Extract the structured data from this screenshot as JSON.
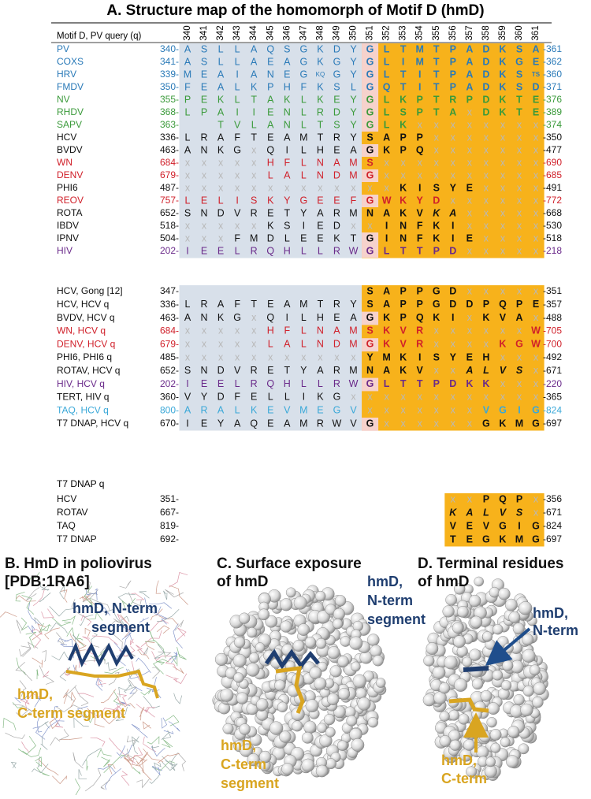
{
  "panel_a": {
    "title": "A. Structure map of the homomorph of Motif D (hmD)",
    "query_label": "Motif D, PV query (q)",
    "positions": [
      340,
      341,
      342,
      343,
      344,
      345,
      346,
      347,
      348,
      349,
      350,
      351,
      352,
      353,
      354,
      355,
      356,
      357,
      358,
      359,
      360,
      361
    ],
    "groups": [
      {
        "rows": [
          {
            "name": "PV",
            "color": "#2a7ab8",
            "start": "340-",
            "residues": [
              "A",
              "S",
              "L",
              "L",
              "A",
              "Q",
              "S",
              "G",
              "K",
              "D",
              "Y",
              "G",
              "L",
              "T",
              "M",
              "T",
              "P",
              "A",
              "D",
              "K",
              "S",
              "A"
            ],
            "end": "-361"
          },
          {
            "name": "COXS",
            "color": "#2a7ab8",
            "start": "341-",
            "residues": [
              "A",
              "S",
              "L",
              "L",
              "A",
              "E",
              "A",
              "G",
              "K",
              "G",
              "Y",
              "G",
              "L",
              "I",
              "M",
              "T",
              "P",
              "A",
              "D",
              "K",
              "G",
              "E"
            ],
            "end": "-362"
          },
          {
            "name": "HRV",
            "color": "#2a7ab8",
            "start": "339-",
            "residues": [
              "M",
              "E",
              "A",
              "I",
              "A",
              "N",
              "E",
              "G",
              "KQ",
              "G",
              "Y",
              "G",
              "L",
              "T",
              "I",
              "T",
              "P",
              "A",
              "D",
              "K",
              "S",
              "TS"
            ],
            "end": "-360"
          },
          {
            "name": "FMDV",
            "color": "#2a7ab8",
            "start": "350-",
            "residues": [
              "F",
              "E",
              "A",
              "L",
              "K",
              "P",
              "H",
              "F",
              "K",
              "S",
              "L",
              "G",
              "Q",
              "T",
              "I",
              "T",
              "P",
              "A",
              "D",
              "K",
              "S",
              "D"
            ],
            "end": "-371"
          },
          {
            "name": "NV",
            "color": "#3a9a3a",
            "start": "355-",
            "residues": [
              "P",
              "E",
              "K",
              "L",
              "T",
              "A",
              "K",
              "L",
              "K",
              "E",
              "Y",
              "G",
              "L",
              "K",
              "P",
              "T",
              "R",
              "P",
              "D",
              "K",
              "T",
              "E"
            ],
            "end": "-376"
          },
          {
            "name": "RHDV",
            "color": "#3a9a3a",
            "start": "368-",
            "residues": [
              "L",
              "P",
              "A",
              "I",
              "I",
              "E",
              "N",
              "L",
              "R",
              "D",
              "Y",
              "G",
              "L",
              "S",
              "P",
              "T",
              "A",
              "x",
              "D",
              "K",
              "T",
              "E"
            ],
            "end": "-389"
          },
          {
            "name": "SAPV",
            "color": "#3a9a3a",
            "start": "363-",
            "residues": [
              null,
              null,
              "T",
              "V",
              "L",
              "A",
              "N",
              "L",
              "T",
              "S",
              "Y",
              "G",
              "L",
              "K",
              "x",
              "x",
              "x",
              "x",
              "x",
              "x",
              "x",
              "x"
            ],
            "end": "-374"
          },
          {
            "name": "HCV",
            "color": "#111111",
            "start": "336-",
            "residues": [
              "L",
              "R",
              "A",
              "F",
              "T",
              "E",
              "A",
              "M",
              "T",
              "R",
              "Y",
              "S",
              "A",
              "P",
              "P",
              "x",
              "x",
              "x",
              "x",
              "x",
              "x",
              "x"
            ],
            "end": "-350"
          },
          {
            "name": "BVDV",
            "color": "#111111",
            "start": "463-",
            "residues": [
              "A",
              "N",
              "K",
              "G",
              "x",
              "Q",
              "I",
              "L",
              "H",
              "E",
              "A",
              "G",
              "K",
              "P",
              "Q",
              "x",
              "x",
              "x",
              "x",
              "x",
              "x",
              "x"
            ],
            "end": "-477"
          },
          {
            "name": "WN",
            "color": "#d0202a",
            "start": "684-",
            "residues": [
              "x",
              "x",
              "x",
              "x",
              "x",
              "H",
              "F",
              "L",
              "N",
              "A",
              "M",
              "S",
              "x",
              "x",
              "x",
              "x",
              "x",
              "x",
              "x",
              "x",
              "x",
              "x"
            ],
            "end": "-690"
          },
          {
            "name": "DENV",
            "color": "#d0202a",
            "start": "679-",
            "residues": [
              "x",
              "x",
              "x",
              "x",
              "x",
              "L",
              "A",
              "L",
              "N",
              "D",
              "M",
              "G",
              "x",
              "x",
              "x",
              "x",
              "x",
              "x",
              "x",
              "x",
              "x",
              "x"
            ],
            "end": "-685"
          },
          {
            "name": "PHI6",
            "color": "#111111",
            "start": "487-",
            "residues": [
              "x",
              "x",
              "x",
              "x",
              "x",
              "x",
              "x",
              "x",
              "x",
              "x",
              "x",
              "x",
              "x",
              "K",
              "I",
              "S",
              "Y",
              "E",
              "x",
              "x",
              "x",
              "x"
            ],
            "end": "-491"
          },
          {
            "name": "REOV",
            "color": "#d0202a",
            "start": "757-",
            "residues": [
              "L",
              "E",
              "L",
              "I",
              "S",
              "K",
              "Y",
              "G",
              "E",
              "E",
              "F",
              "G",
              "W",
              "K",
              "Y",
              "D",
              "x",
              "x",
              "x",
              "x",
              "x",
              "x"
            ],
            "end": "-772"
          },
          {
            "name": "ROTA",
            "color": "#111111",
            "start": "652-",
            "residues": [
              "S",
              "N",
              "D",
              "V",
              "R",
              "E",
              "T",
              "Y",
              "A",
              "R",
              "M",
              "N",
              "A",
              "K",
              "V",
              "K",
              "A",
              "x",
              "x",
              "x",
              "x",
              "x"
            ],
            "end": "-668"
          },
          {
            "name": "IBDV",
            "color": "#111111",
            "start": "518-",
            "residues": [
              "x",
              "x",
              "x",
              "x",
              "x",
              "K",
              "S",
              "I",
              "E",
              "D",
              "x",
              "x",
              "I",
              "N",
              "F",
              "K",
              "I",
              "x",
              "x",
              "x",
              "x",
              "x"
            ],
            "end": "-530"
          },
          {
            "name": "IPNV",
            "color": "#111111",
            "start": "504-",
            "residues": [
              "x",
              "x",
              "x",
              "F",
              "M",
              "D",
              "L",
              "E",
              "E",
              "K",
              "T",
              "G",
              "I",
              "N",
              "F",
              "K",
              "I",
              "E",
              "x",
              "x",
              "x",
              "x"
            ],
            "end": "-518"
          },
          {
            "name": "HIV",
            "color": "#6a2a8a",
            "start": "202-",
            "residues": [
              "I",
              "E",
              "E",
              "L",
              "R",
              "Q",
              "H",
              "L",
              "L",
              "R",
              "W",
              "G",
              "L",
              "T",
              "T",
              "P",
              "D",
              "x",
              "x",
              "x",
              "x",
              "x"
            ],
            "end": "-218"
          }
        ]
      },
      {
        "rows": [
          {
            "name": "HCV, Gong [12]",
            "color": "#111111",
            "start": "347-",
            "residues": [
              null,
              null,
              null,
              null,
              null,
              null,
              null,
              null,
              null,
              null,
              null,
              "S",
              "A",
              "P",
              "P",
              "G",
              "D",
              "x",
              "x",
              "x",
              "x",
              "x"
            ],
            "end": "-351"
          },
          {
            "name": "HCV, HCV q",
            "color": "#111111",
            "start": "336-",
            "residues": [
              "L",
              "R",
              "A",
              "F",
              "T",
              "E",
              "A",
              "M",
              "T",
              "R",
              "Y",
              "S",
              "A",
              "P",
              "P",
              "G",
              "D",
              "D",
              "P",
              "Q",
              "P",
              "E"
            ],
            "end": "-357"
          },
          {
            "name": "BVDV, HCV q",
            "color": "#111111",
            "start": "463-",
            "residues": [
              "A",
              "N",
              "K",
              "G",
              "x",
              "Q",
              "I",
              "L",
              "H",
              "E",
              "A",
              "G",
              "K",
              "P",
              "Q",
              "K",
              "I",
              "x",
              "K",
              "V",
              "A",
              "x"
            ],
            "end": "-488"
          },
          {
            "name": "WN, HCV q",
            "color": "#d0202a",
            "start": "684-",
            "residues": [
              "x",
              "x",
              "x",
              "x",
              "x",
              "H",
              "F",
              "L",
              "N",
              "A",
              "M",
              "S",
              "K",
              "V",
              "R",
              "x",
              "x",
              "x",
              "x",
              "x",
              "x",
              "W"
            ],
            "end": "-705"
          },
          {
            "name": "DENV, HCV q",
            "color": "#d0202a",
            "start": "679-",
            "residues": [
              "x",
              "x",
              "x",
              "x",
              "x",
              "L",
              "A",
              "L",
              "N",
              "D",
              "M",
              "G",
              "K",
              "V",
              "R",
              "x",
              "x",
              "x",
              "x",
              "K",
              "G",
              "W"
            ],
            "end": "-700"
          },
          {
            "name": "PHI6, PHI6 q",
            "color": "#111111",
            "start": "485-",
            "residues": [
              "x",
              "x",
              "x",
              "x",
              "x",
              "x",
              "x",
              "x",
              "x",
              "x",
              "x",
              "Y",
              "M",
              "K",
              "I",
              "S",
              "Y",
              "E",
              "H",
              "x",
              "x",
              "x"
            ],
            "end": "-492"
          },
          {
            "name": "ROTAV, HCV q",
            "color": "#111111",
            "start": "652-",
            "residues": [
              "S",
              "N",
              "D",
              "V",
              "R",
              "E",
              "T",
              "Y",
              "A",
              "R",
              "M",
              "N",
              "A",
              "K",
              "V",
              "x",
              "x",
              "A",
              "L",
              "V",
              "S",
              "x"
            ],
            "end": "-671"
          },
          {
            "name": "HIV, HCV q",
            "color": "#6a2a8a",
            "start": "202-",
            "residues": [
              "I",
              "E",
              "E",
              "L",
              "R",
              "Q",
              "H",
              "L",
              "L",
              "R",
              "W",
              "G",
              "L",
              "T",
              "T",
              "P",
              "D",
              "K",
              "K",
              "x",
              "x",
              "x"
            ],
            "end": "-220"
          },
          {
            "name": "TERT, HIV q",
            "color": "#111111",
            "start": "360-",
            "residues": [
              "V",
              "Y",
              "D",
              "F",
              "E",
              "L",
              "L",
              "I",
              "K",
              "G",
              "x",
              "x",
              "x",
              "x",
              "x",
              "x",
              "x",
              "x",
              "x",
              "x",
              "x",
              "x"
            ],
            "end": "-365"
          },
          {
            "name": "TAQ, HCV q",
            "color": "#3aa8d8",
            "start": "800-",
            "residues": [
              "A",
              "R",
              "A",
              "L",
              "K",
              "E",
              "V",
              "M",
              "E",
              "G",
              "V",
              "x",
              "x",
              "x",
              "x",
              "x",
              "x",
              "x",
              "V",
              "G",
              "I",
              "G"
            ],
            "end": "-824"
          },
          {
            "name": "T7 DNAP, HCV q",
            "color": "#111111",
            "start": "670-",
            "residues": [
              "I",
              "E",
              "Y",
              "A",
              "Q",
              "E",
              "A",
              "M",
              "R",
              "W",
              "V",
              "G",
              "x",
              "x",
              "x",
              "x",
              "x",
              "x",
              "G",
              "K",
              "M",
              "G"
            ],
            "end": "-697"
          }
        ]
      },
      {
        "header": "T7 DNAP q",
        "rows": [
          {
            "name": "HCV",
            "color": "#111111",
            "start": "351-",
            "residues": [
              "x",
              "x",
              "P",
              "Q",
              "P",
              "x"
            ],
            "end": "-356"
          },
          {
            "name": "ROTAV",
            "color": "#111111",
            "start": "667-",
            "residues": [
              "K",
              "A",
              "L",
              "V",
              "S",
              "x"
            ],
            "end": "-671"
          },
          {
            "name": "TAQ",
            "color": "#111111",
            "start": "819-",
            "residues": [
              "V",
              "E",
              "V",
              "G",
              "I",
              "G"
            ],
            "end": "-824"
          },
          {
            "name": "T7 DNAP",
            "color": "#111111",
            "start": "692-",
            "residues": [
              "T",
              "E",
              "G",
              "K",
              "M",
              "G"
            ],
            "end": "-697"
          }
        ]
      }
    ]
  },
  "panel_b": {
    "title_lines": [
      "B. HmD in poliovirus",
      "[PDB:1RA6]"
    ],
    "n_term_label": [
      "hmD, N-term",
      "segment"
    ],
    "c_term_label": [
      "hmD,",
      "C-term segment"
    ]
  },
  "panel_c": {
    "title_lines": [
      "C. Surface exposure",
      "of hmD"
    ],
    "n_term_label": [
      "hmD,",
      "N-term",
      "segment"
    ],
    "c_term_label": [
      "hmD,",
      "C-term",
      "segment"
    ]
  },
  "panel_d": {
    "title_lines": [
      "D. Terminal residues",
      "of hmD"
    ],
    "n_term_label": [
      "hmD,",
      "N-term"
    ],
    "c_term_label": [
      "hmD,",
      "C-term"
    ]
  }
}
